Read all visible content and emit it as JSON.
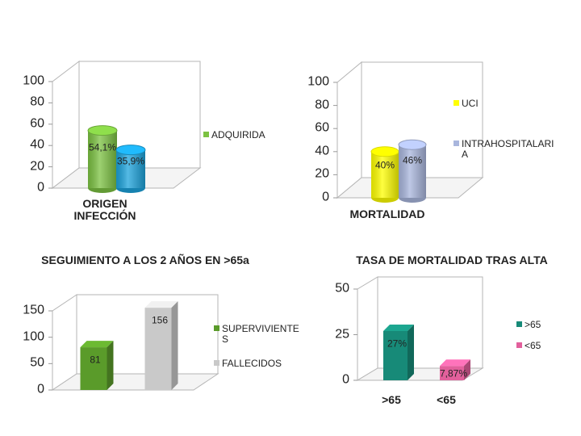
{
  "chart_data": [
    {
      "type": "bar",
      "bar_shape": "cylinder",
      "categories": [
        "ORIGEN INFECCIÓN"
      ],
      "series": [
        {
          "name": "ADQUIRIDA",
          "color": "#7cc242",
          "values": [
            54.1
          ],
          "value_labels": [
            "54,1%"
          ]
        },
        {
          "name": null,
          "color": "#1ca3dc",
          "values": [
            35.9
          ],
          "value_labels": [
            "35,9%"
          ]
        }
      ],
      "ylim": [
        0,
        100
      ],
      "yticks": [
        0,
        20,
        40,
        60,
        80,
        100
      ],
      "legend": "right"
    },
    {
      "type": "bar",
      "bar_shape": "cylinder",
      "categories": [
        "MORTALIDAD"
      ],
      "series": [
        {
          "name": "UCI",
          "color": "#ffff00",
          "values": [
            40
          ],
          "value_labels": [
            "40%"
          ]
        },
        {
          "name": "INTRAHOSPITALARIA",
          "color": "#a9b6dd",
          "values": [
            46
          ],
          "value_labels": [
            "46%"
          ]
        }
      ],
      "ylim": [
        0,
        100
      ],
      "yticks": [
        0,
        20,
        40,
        60,
        80,
        100
      ],
      "legend": "right"
    },
    {
      "type": "bar",
      "bar_shape": "box",
      "title": "SEGUIMIENTO A LOS 2 AÑOS EN >65a",
      "categories": [
        null
      ],
      "series": [
        {
          "name": "SUPERVIVIENTES",
          "color": "#5a9b2a",
          "values": [
            81
          ]
        },
        {
          "name": "FALLECIDOS",
          "color": "#c9c9c9",
          "values": [
            156
          ]
        }
      ],
      "ylim": [
        0,
        150
      ],
      "yticks": [
        0,
        50,
        100,
        150
      ],
      "legend": "right"
    },
    {
      "type": "bar",
      "bar_shape": "box",
      "title": "TASA DE MORTALIDAD TRAS ALTA",
      "categories": [
        ">65",
        "<65"
      ],
      "series": [
        {
          "name": ">65",
          "color": "#178a78",
          "values": [
            27,
            null
          ],
          "value_labels": [
            "27%",
            null
          ]
        },
        {
          "name": "<65",
          "color": "#e2609c",
          "values": [
            null,
            7.87
          ],
          "value_labels": [
            null,
            "7,87%"
          ]
        }
      ],
      "ylim": [
        0,
        50
      ],
      "yticks": [
        0,
        25,
        50
      ],
      "legend": "right"
    }
  ]
}
